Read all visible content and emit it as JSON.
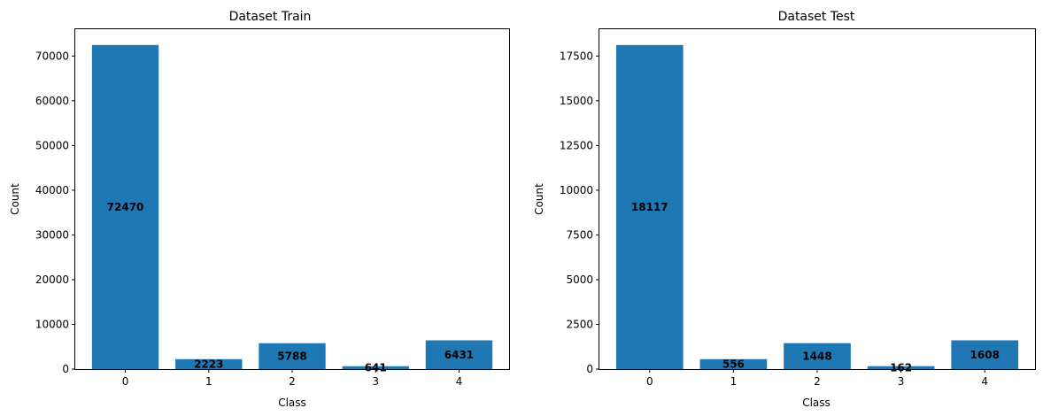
{
  "chart_data": [
    {
      "type": "bar",
      "title": "Dataset Train",
      "xlabel": "Class",
      "ylabel": "Count",
      "categories": [
        "0",
        "1",
        "2",
        "3",
        "4"
      ],
      "values": [
        72470,
        2223,
        5788,
        641,
        6431
      ],
      "value_labels": [
        "72470",
        "2223",
        "5788",
        "641",
        "6431"
      ],
      "ylim": [
        0,
        76000
      ],
      "yticks": [
        0,
        10000,
        20000,
        30000,
        40000,
        50000,
        60000,
        70000
      ],
      "ytick_labels": [
        "0",
        "10000",
        "20000",
        "30000",
        "40000",
        "50000",
        "60000",
        "70000"
      ],
      "bar_color": "#1f77b4",
      "grid": false,
      "legend": "none"
    },
    {
      "type": "bar",
      "title": "Dataset Test",
      "xlabel": "Class",
      "ylabel": "Count",
      "categories": [
        "0",
        "1",
        "2",
        "3",
        "4"
      ],
      "values": [
        18117,
        556,
        1448,
        162,
        1608
      ],
      "value_labels": [
        "18117",
        "556",
        "1448",
        "162",
        "1608"
      ],
      "ylim": [
        0,
        19000
      ],
      "yticks": [
        0,
        2500,
        5000,
        7500,
        10000,
        12500,
        15000,
        17500
      ],
      "ytick_labels": [
        "0",
        "2500",
        "5000",
        "7500",
        "10000",
        "12500",
        "15000",
        "17500"
      ],
      "bar_color": "#1f77b4",
      "grid": false,
      "legend": "none"
    }
  ]
}
